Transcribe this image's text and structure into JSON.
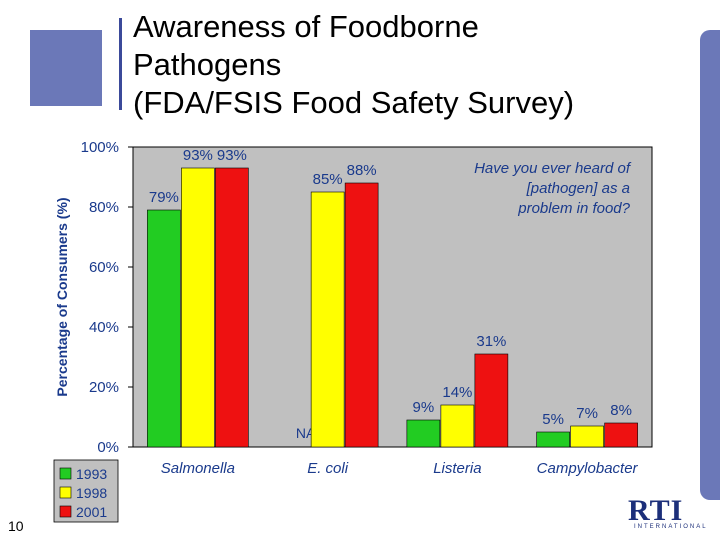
{
  "slide": {
    "title": "Awareness of Foodborne\nPathogens\n (FDA/FSIS Food Safety Survey)",
    "page_number": "10",
    "logo_text": "RTI",
    "logo_subtext": "INTERNATIONAL"
  },
  "chart_data": {
    "type": "bar",
    "title": "",
    "ylabel": "Percentage of Consumers (%)",
    "xlabel": "",
    "ylim": [
      0,
      100
    ],
    "yticks": [
      0,
      20,
      40,
      60,
      80,
      100
    ],
    "ytick_labels": [
      "0%",
      "20%",
      "40%",
      "60%",
      "80%",
      "100%"
    ],
    "categories": [
      "Salmonella",
      "E. coli",
      "Listeria",
      "Campylobacter"
    ],
    "series": [
      {
        "name": "1993",
        "color": "#22cc22",
        "values": [
          79,
          null,
          9,
          5
        ],
        "labels": [
          "79%",
          "NA",
          "9%",
          "5%"
        ]
      },
      {
        "name": "1998",
        "color": "#ffff00",
        "values": [
          93,
          85,
          14,
          7
        ],
        "labels": [
          "93%",
          "85%",
          "14%",
          "7%"
        ]
      },
      {
        "name": "2001",
        "color": "#ee1111",
        "values": [
          93,
          88,
          31,
          8
        ],
        "labels": [
          "93%",
          "88%",
          "31%",
          "8%"
        ]
      }
    ],
    "annotation": "Have you ever heard of\n[pathogen] as a\nproblem in food?",
    "legend_position": "bottom-left",
    "grid": false,
    "plot_background": "#c0c0c0"
  }
}
